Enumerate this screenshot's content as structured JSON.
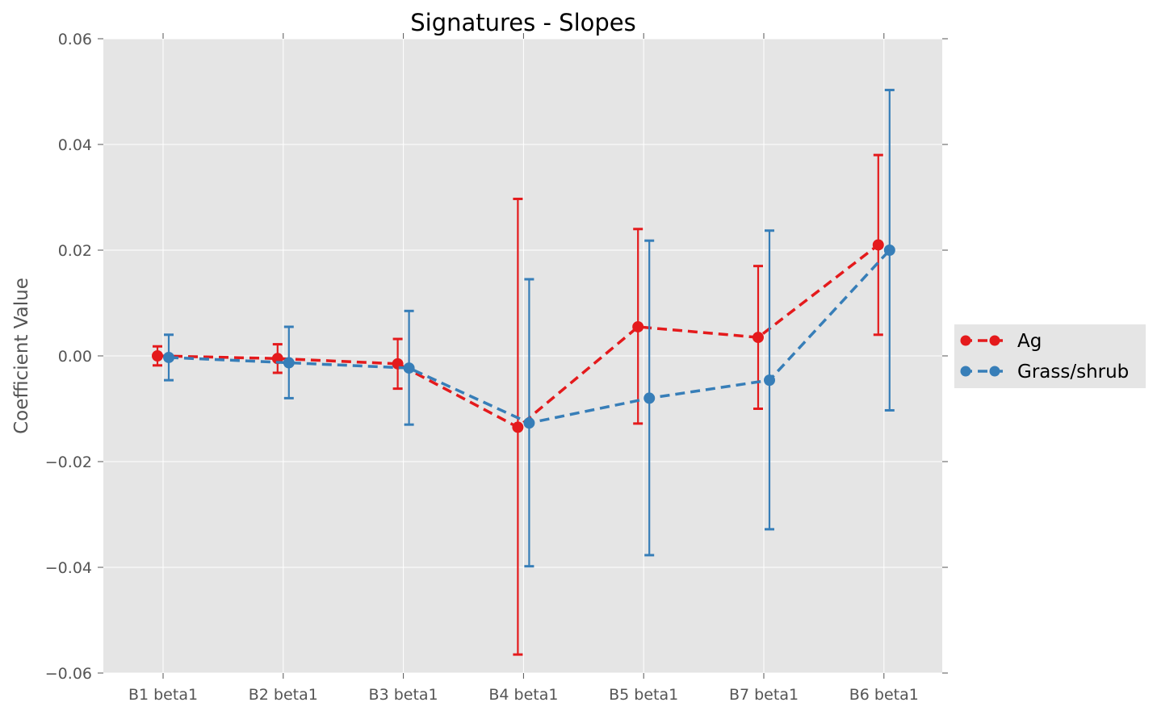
{
  "chart_data": {
    "type": "line",
    "title": "Signatures - Slopes",
    "xlabel": "",
    "ylabel": "Coefficient Value",
    "categories": [
      "B1 beta1",
      "B2 beta1",
      "B3 beta1",
      "B4 beta1",
      "B5 beta1",
      "B7 beta1",
      "B6 beta1"
    ],
    "ylim": [
      -0.06,
      0.06
    ],
    "yticks": [
      0.06,
      0.04,
      0.02,
      0.0,
      -0.02,
      -0.04,
      -0.06
    ],
    "ytick_labels": [
      "0.06",
      "0.04",
      "0.02",
      "0.00",
      "−0.02",
      "−0.04",
      "−0.06"
    ],
    "grid": true,
    "legend_position": "center-right-outside",
    "background_color": "#e5e5e5",
    "series": [
      {
        "name": "Ag",
        "color": "#e41a1c",
        "line_style": "dashed",
        "values": [
          0.0,
          -0.0005,
          -0.0015,
          -0.0135,
          0.0055,
          0.0035,
          0.021
        ],
        "error_low": [
          -0.0018,
          -0.0032,
          -0.0062,
          -0.0565,
          -0.0128,
          -0.01,
          0.004
        ],
        "error_high": [
          0.0018,
          0.0022,
          0.0032,
          0.0297,
          0.024,
          0.017,
          0.038
        ]
      },
      {
        "name": "Grass/shrub",
        "color": "#377eb8",
        "line_style": "dashed",
        "values": [
          -0.0003,
          -0.0013,
          -0.0023,
          -0.0127,
          -0.008,
          -0.0046,
          0.02
        ],
        "error_low": [
          -0.0046,
          -0.008,
          -0.013,
          -0.0398,
          -0.0377,
          -0.0328,
          -0.0103
        ],
        "error_high": [
          0.004,
          0.0055,
          0.0085,
          0.0145,
          0.0218,
          0.0237,
          0.0503
        ]
      }
    ]
  }
}
